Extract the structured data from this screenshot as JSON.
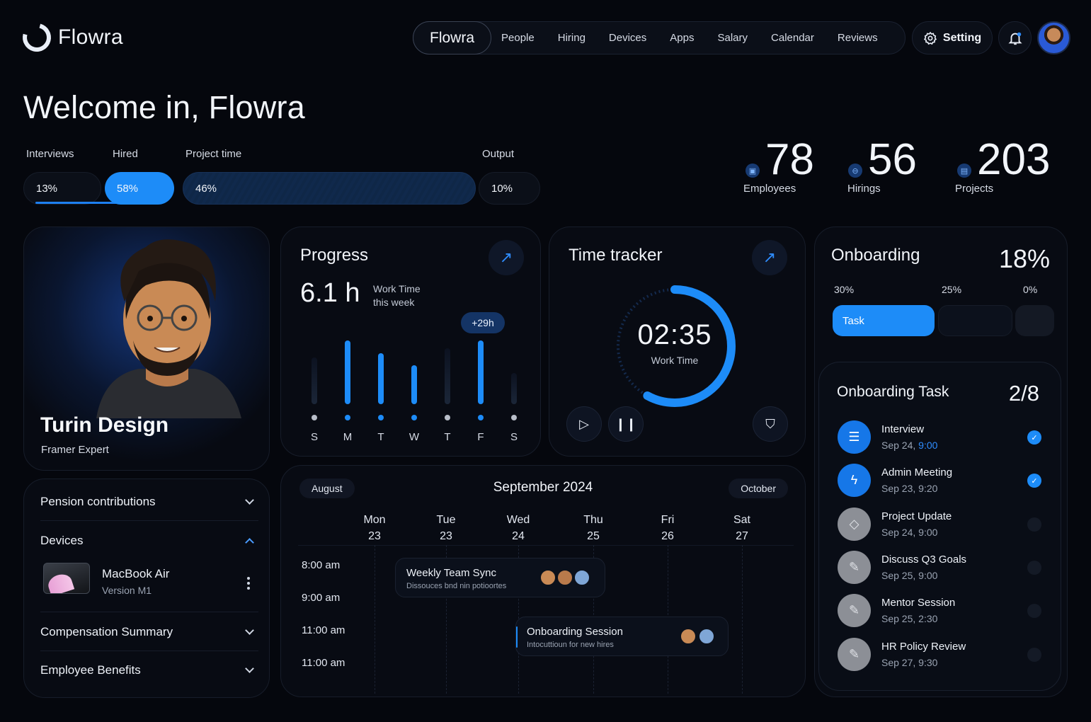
{
  "app": {
    "name": "Flowra"
  },
  "nav": {
    "active": "Flowra",
    "items": [
      "People",
      "Hiring",
      "Devices",
      "Apps",
      "Salary",
      "Calendar",
      "Reviews"
    ],
    "setting": "Setting"
  },
  "welcome": {
    "title": "Welcome in, Flowra"
  },
  "stats_bar": {
    "interviews": {
      "label": "Interviews",
      "value": "13%"
    },
    "hired": {
      "label": "Hired",
      "value": "58%"
    },
    "project_time": {
      "label": "Project time",
      "value": "46%"
    },
    "output": {
      "label": "Output",
      "value": "10%"
    }
  },
  "counters": {
    "employees": {
      "value": "78",
      "label": "Employees"
    },
    "hirings": {
      "value": "56",
      "label": "Hirings"
    },
    "projects": {
      "value": "203",
      "label": "Projects"
    }
  },
  "profile": {
    "name": "Turin Design",
    "role": "Framer Expert"
  },
  "accordion": {
    "pension": "Pension contributions",
    "devices": "Devices",
    "device_name": "MacBook Air",
    "device_version": "Version M1",
    "compensation": "Compensation Summary",
    "benefits": "Employee Benefits"
  },
  "progress": {
    "title": "Progress",
    "hours": "6.1 h",
    "sub": "Work Time this week",
    "badge": "+29h",
    "days": [
      "S",
      "M",
      "T",
      "W",
      "T",
      "F",
      "S"
    ],
    "levels": [
      0.6,
      0.82,
      0.65,
      0.5,
      0.72,
      0.82,
      0.4
    ],
    "active": [
      false,
      true,
      true,
      true,
      false,
      true,
      false
    ]
  },
  "tracker": {
    "title": "Time tracker",
    "time": "02:35",
    "sub": "Work Time",
    "fraction": 0.58
  },
  "onboarding": {
    "title": "Onboarding",
    "percent": "18%",
    "seg_labels": [
      "30%",
      "25%",
      "0%"
    ],
    "task_seg": "Task",
    "task_title": "Onboarding Task",
    "task_count": "2/8",
    "tasks": [
      {
        "name": "Interview",
        "date": "Sep 24,",
        "time": "9:00",
        "done": true,
        "icon": "list-icon"
      },
      {
        "name": "Admin Meeting",
        "date": "Sep 23, 9:20",
        "time": "",
        "done": true,
        "icon": "bolt-icon"
      },
      {
        "name": "Project Update",
        "date": "Sep 24, 9:00",
        "time": "",
        "done": false,
        "icon": "diamond-icon"
      },
      {
        "name": "Discuss Q3 Goals",
        "date": "Sep 25, 9:00",
        "time": "",
        "done": false,
        "icon": "pencil-icon"
      },
      {
        "name": "Mentor Session",
        "date": "Sep 25, 2:30",
        "time": "",
        "done": false,
        "icon": "pencil-icon"
      },
      {
        "name": "HR Policy Review",
        "date": "Sep 27, 9:30",
        "time": "",
        "done": false,
        "icon": "pencil-icon"
      }
    ]
  },
  "calendar": {
    "prev": "August",
    "title": "September 2024",
    "next": "October",
    "days": [
      {
        "name": "Mon",
        "num": "23"
      },
      {
        "name": "Tue",
        "num": "23"
      },
      {
        "name": "Wed",
        "num": "24"
      },
      {
        "name": "Thu",
        "num": "25"
      },
      {
        "name": "Fri",
        "num": "26"
      },
      {
        "name": "Sat",
        "num": "27"
      }
    ],
    "times": [
      "8:00 am",
      "9:00 am",
      "11:00 am",
      "11:00 am"
    ],
    "events": [
      {
        "title": "Weekly Team Sync",
        "sub": "Dissouces bnd nin potioortes"
      },
      {
        "title": "Onboarding Session",
        "sub": "Intocuttioun for new hires"
      }
    ]
  },
  "colors": {
    "accent": "#1d8cf8",
    "background": "#05070d",
    "card": "#080b13"
  }
}
